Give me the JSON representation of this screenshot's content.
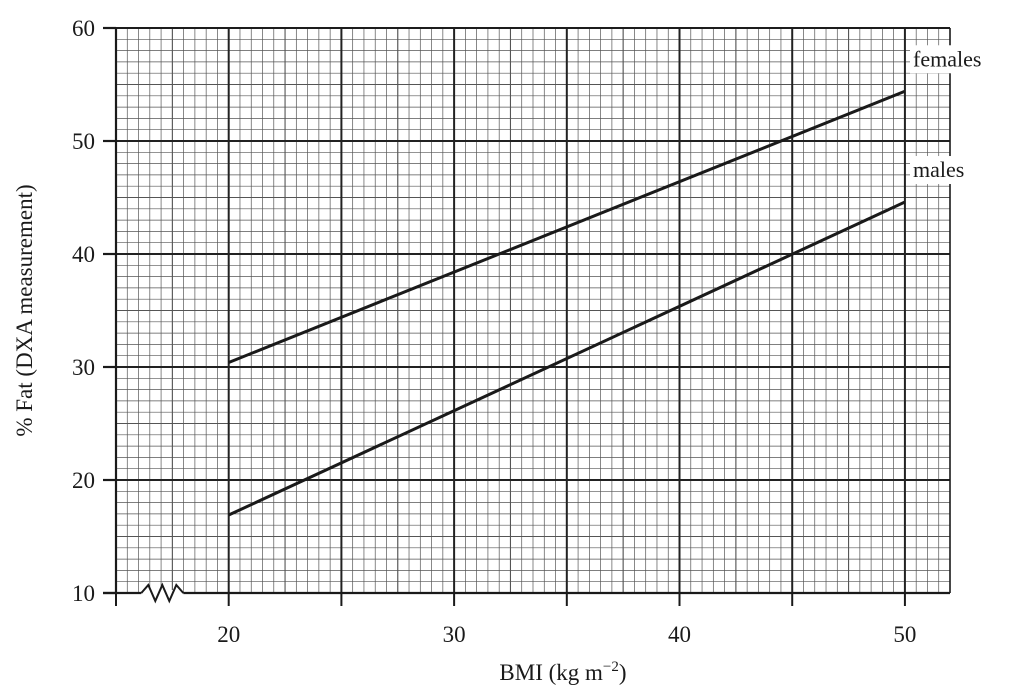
{
  "chart_data": {
    "type": "line",
    "title": "",
    "xlabel": "BMI (kg m",
    "xlabel_sup": "−2",
    "xlabel_close": ")",
    "ylabel": "% Fat (DXA measurement)",
    "xlim": [
      15,
      52
    ],
    "ylim": [
      10,
      60
    ],
    "x_ticks": [
      20,
      30,
      40,
      50
    ],
    "x_tick_labels": [
      "20",
      "30",
      "40",
      "50"
    ],
    "x_minor_ticks": [
      25,
      35,
      45
    ],
    "y_ticks": [
      10,
      20,
      30,
      40,
      50,
      60
    ],
    "y_tick_labels": [
      "10",
      "20",
      "30",
      "40",
      "50",
      "60"
    ],
    "grid": true,
    "x_axis_break": true,
    "series": [
      {
        "name": "females",
        "x": [
          20,
          50
        ],
        "y": [
          30.4,
          54.4
        ]
      },
      {
        "name": "males",
        "x": [
          20,
          50
        ],
        "y": [
          16.9,
          44.6
        ]
      }
    ],
    "colors": {
      "line": "#1a1a1a",
      "grid_major": "#222222",
      "grid_minor": "#555555"
    }
  }
}
